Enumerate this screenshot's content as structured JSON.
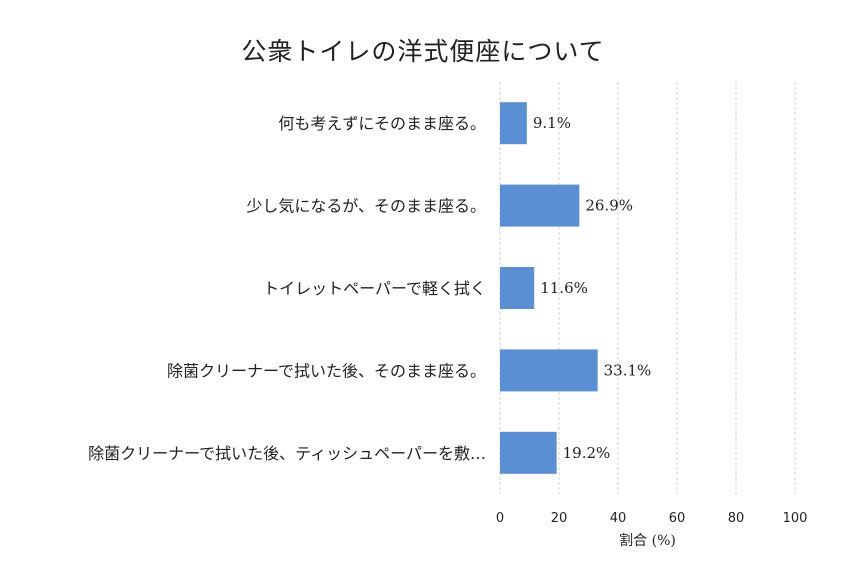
{
  "chart_data": {
    "type": "bar",
    "orientation": "horizontal",
    "title": "公衆トイレの洋式便座について",
    "categories": [
      "何も考えずにそのまま座る。",
      "少し気になるが、そのまま座る。",
      "トイレットペーパーで軽く拭く",
      "除菌クリーナーで拭いた後、そのまま座る。",
      "除菌クリーナーで拭いた後、ティッシュペーパーを敷…"
    ],
    "values": [
      9.1,
      26.9,
      11.6,
      33.1,
      19.2
    ],
    "value_labels": [
      "9.1%",
      "26.9%",
      "11.6%",
      "33.1%",
      "19.2%"
    ],
    "xlabel": "割合 (%)",
    "ylabel": "",
    "xlim": [
      0,
      100
    ],
    "xticks": [
      "0",
      "20",
      "40",
      "60",
      "80",
      "100"
    ],
    "grid": "vertical dashed",
    "bar_color": "#5b8fd3"
  }
}
